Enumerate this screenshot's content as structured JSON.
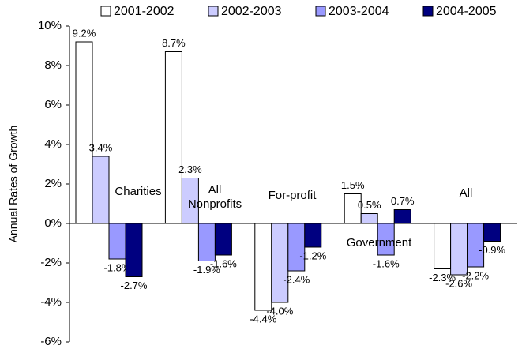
{
  "chart_data": {
    "type": "bar",
    "y_label": "Annual Rates of Growth",
    "categories": [
      "Charities",
      "All Nonprofits",
      "For-profit",
      "Government",
      "All"
    ],
    "series": [
      {
        "name": "2001-2002",
        "color": "#ffffff",
        "values": [
          9.2,
          8.7,
          -4.4,
          1.5,
          -2.3
        ],
        "value_labels": [
          "9.2%",
          "8.7%",
          "-4.4%",
          "1.5%",
          "-2.3%"
        ]
      },
      {
        "name": "2002-2003",
        "color": "#ccccff",
        "values": [
          3.4,
          2.3,
          -4.0,
          0.5,
          -2.6
        ],
        "value_labels": [
          "3.4%",
          "2.3%",
          "-4.0%",
          "0.5%",
          "-2.6%"
        ]
      },
      {
        "name": "2003-2004",
        "color": "#9999ff",
        "values": [
          -1.8,
          -1.9,
          -2.4,
          -1.6,
          -2.2
        ],
        "value_labels": [
          "-1.8%",
          "-1.9%",
          "-2.4%",
          "-1.6%",
          "-2.2%"
        ]
      },
      {
        "name": "2004-2005",
        "color": "#000080",
        "values": [
          -2.7,
          -1.6,
          -1.2,
          0.7,
          -0.9
        ],
        "value_labels": [
          "-2.7%",
          "-1.6%",
          "-1.2%",
          "0.7%",
          "-0.9%"
        ]
      }
    ],
    "ylim": [
      -6,
      10
    ],
    "yticks": [
      {
        "value": -6,
        "label": "-6%"
      },
      {
        "value": -4,
        "label": "-4%"
      },
      {
        "value": -2,
        "label": "-2%"
      },
      {
        "value": 0,
        "label": "0%"
      },
      {
        "value": 2,
        "label": "2%"
      },
      {
        "value": 4,
        "label": "4%"
      },
      {
        "value": 6,
        "label": "6%"
      },
      {
        "value": 8,
        "label": "8%"
      },
      {
        "value": 10,
        "label": "10%"
      }
    ],
    "legend": "top"
  }
}
